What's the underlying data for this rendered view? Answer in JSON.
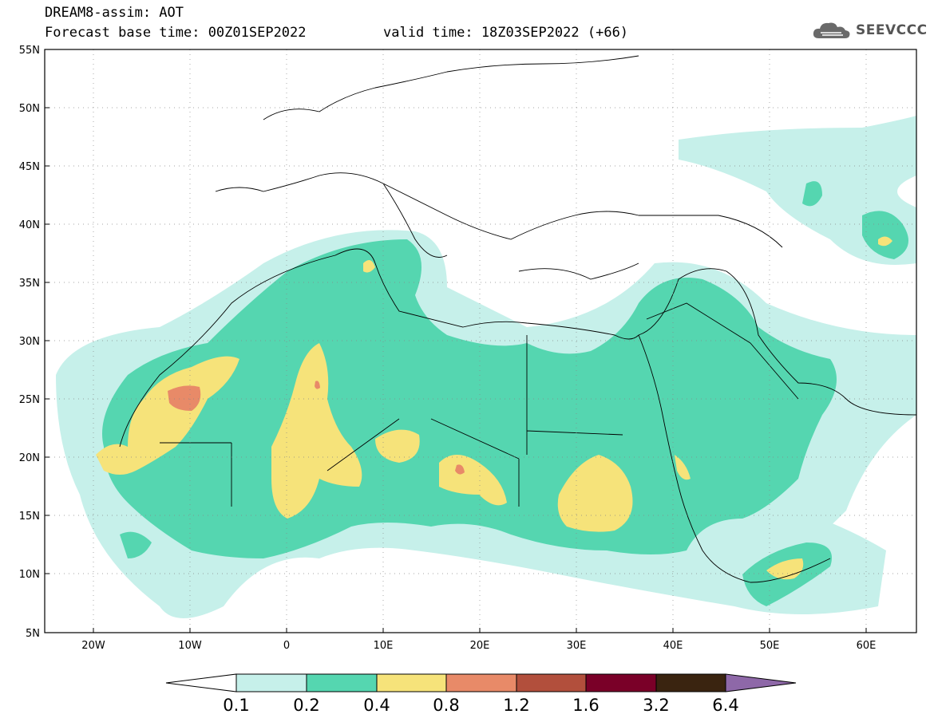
{
  "header": {
    "line1": "DREAM8-assim: AOT",
    "line2": "Forecast base time: 00Z01SEP2022",
    "valid": "valid time: 18Z03SEP2022 (+66)"
  },
  "logo": {
    "text": "SEEVCCC",
    "icon": "cloud-icon"
  },
  "map": {
    "lat_ticks": [
      "55N",
      "50N",
      "45N",
      "40N",
      "35N",
      "30N",
      "25N",
      "20N",
      "15N",
      "10N",
      "5N"
    ],
    "lon_ticks": [
      "20W",
      "10W",
      "0",
      "10E",
      "20E",
      "30E",
      "40E",
      "50E",
      "60E"
    ],
    "lon_range": [
      -25,
      65
    ],
    "lat_range": [
      5,
      55
    ],
    "gridlines": "dotted"
  },
  "colorbar": {
    "labels": [
      "0.1",
      "0.2",
      "0.4",
      "0.8",
      "1.2",
      "1.6",
      "3.2",
      "6.4"
    ],
    "colors": [
      "#ffffff",
      "#c6f0ea",
      "#55d6b0",
      "#f6e37a",
      "#e88a68",
      "#b24f3c",
      "#7a0028",
      "#3a2410",
      "#8e68a8"
    ]
  }
}
